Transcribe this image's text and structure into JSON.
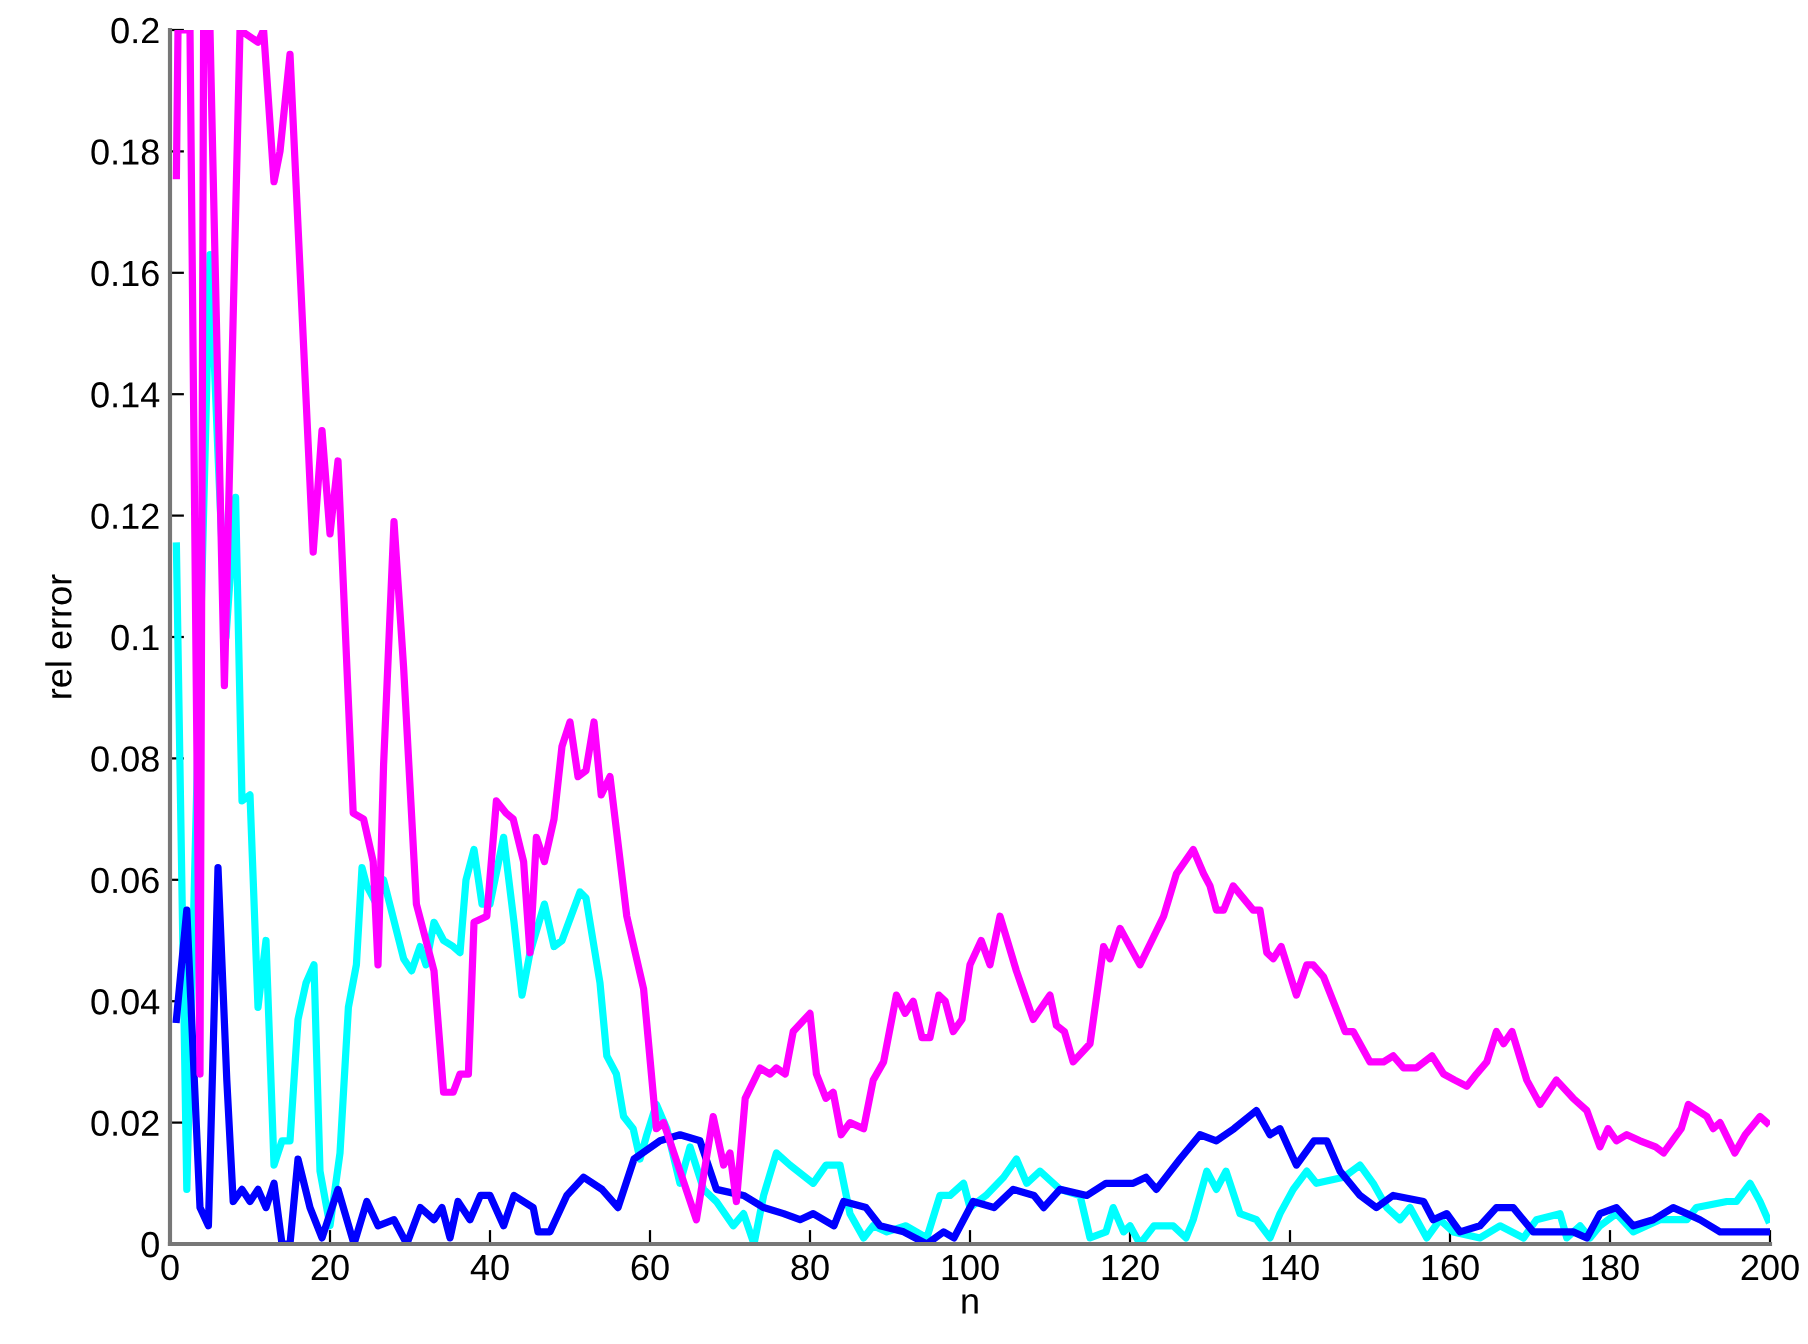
{
  "chart_data": {
    "type": "line",
    "xlabel": "n",
    "ylabel": "rel error",
    "xlim": [
      0,
      200
    ],
    "ylim": [
      0,
      0.2
    ],
    "xticks": [
      0,
      20,
      40,
      60,
      80,
      100,
      120,
      140,
      160,
      180,
      200
    ],
    "yticks": [
      0,
      0.02,
      0.04,
      0.06,
      0.08,
      0.1,
      0.12,
      0.14,
      0.16,
      0.18,
      0.2
    ],
    "grid": false,
    "legend": false,
    "marker": "none",
    "line_style": "solid",
    "series": [
      {
        "color": "#00ffff",
        "x": [
          0.8,
          2.1,
          5,
          6,
          7,
          8.2,
          9,
          10,
          11,
          12,
          13,
          14,
          15,
          16,
          17,
          18,
          18.75,
          20,
          21.25,
          22.3,
          23.3,
          24,
          24.6,
          25.8,
          26.7,
          29.2,
          30.2,
          31.25,
          32,
          33,
          34.2,
          35.4,
          36.25,
          37,
          38,
          39,
          40,
          41.7,
          43,
          44,
          45,
          46.8,
          48,
          49,
          51.25,
          52,
          53.75,
          54.6,
          55.8,
          56.7,
          57.9,
          58.75,
          59.6,
          60.8,
          62.1,
          63.75,
          65,
          66.7,
          68.3,
          70.4,
          71.7,
          73,
          74.2,
          75.8,
          77.5,
          80.4,
          82,
          83.75,
          85,
          86.7,
          87.9,
          89.6,
          92,
          94.6,
          96.25,
          97.5,
          99.2,
          100,
          102,
          104.2,
          105.8,
          107.1,
          108.75,
          111.25,
          113.75,
          115,
          117,
          117.9,
          119.2,
          120,
          121.25,
          123,
          125.4,
          127,
          127.9,
          129.6,
          130.8,
          132,
          133.75,
          135.8,
          137.5,
          138.75,
          140.4,
          142.1,
          143.3,
          146.7,
          148.75,
          150.4,
          152.1,
          153.75,
          155,
          157.1,
          158.75,
          160.4,
          163.75,
          166.25,
          169.2,
          170.8,
          173.75,
          174.6,
          176.25,
          177.5,
          178.75,
          180.8,
          182.9,
          184.6,
          186.25,
          189.6,
          190.8,
          194.6,
          195.8,
          197.5,
          198.75,
          199.75
        ],
        "values": [
          0.115,
          0.009,
          0.163,
          0.13,
          0.1,
          0.123,
          0.073,
          0.074,
          0.039,
          0.05,
          0.013,
          0.017,
          0.017,
          0.037,
          0.043,
          0.046,
          0.012,
          0.003,
          0.015,
          0.039,
          0.046,
          0.062,
          0.059,
          0.056,
          0.06,
          0.047,
          0.045,
          0.049,
          0.046,
          0.053,
          0.05,
          0.049,
          0.048,
          0.06,
          0.065,
          0.056,
          0.056,
          0.067,
          0.053,
          0.041,
          0.048,
          0.056,
          0.049,
          0.05,
          0.058,
          0.057,
          0.043,
          0.031,
          0.028,
          0.021,
          0.019,
          0.014,
          0.018,
          0.023,
          0.019,
          0.01,
          0.016,
          0.009,
          0.007,
          0.003,
          0.005,
          0,
          0.008,
          0.015,
          0.013,
          0.01,
          0.013,
          0.013,
          0.005,
          0.001,
          0.003,
          0.002,
          0.003,
          0.001,
          0.008,
          0.008,
          0.01,
          0.006,
          0.008,
          0.011,
          0.014,
          0.01,
          0.012,
          0.009,
          0.008,
          0.001,
          0.002,
          0.006,
          0.002,
          0.003,
          0,
          0.003,
          0.003,
          0.001,
          0.004,
          0.012,
          0.009,
          0.012,
          0.005,
          0.004,
          0.001,
          0.005,
          0.009,
          0.012,
          0.01,
          0.011,
          0.013,
          0.01,
          0.006,
          0.004,
          0.006,
          0.001,
          0.004,
          0.002,
          0.001,
          0.003,
          0.001,
          0.004,
          0.005,
          0.001,
          0.003,
          0.001,
          0.003,
          0.005,
          0.002,
          0.003,
          0.004,
          0.004,
          0.006,
          0.007,
          0.007,
          0.01,
          0.007,
          0.004
        ]
      },
      {
        "color": "#0000ff",
        "x": [
          0.8,
          2.1,
          3.75,
          4.8,
          6,
          7.1,
          7.9,
          9,
          10,
          11,
          12,
          13,
          14,
          15,
          16,
          17.5,
          19,
          21,
          23,
          24.6,
          26,
          28,
          29.6,
          31.3,
          33,
          34,
          35,
          36,
          37.5,
          38.8,
          40,
          41.7,
          43,
          45.4,
          46,
          47.5,
          49.6,
          51.7,
          54,
          56,
          58,
          61.25,
          63.75,
          66.25,
          68.3,
          71.7,
          74.2,
          76.7,
          78.75,
          80.4,
          83,
          84.2,
          87,
          88.75,
          91.7,
          94.6,
          96.7,
          98,
          100.4,
          103,
          105.4,
          108,
          109.2,
          111.25,
          114.6,
          117,
          120.4,
          122,
          123.3,
          126.25,
          128.75,
          130.8,
          133,
          135.8,
          137.5,
          138.75,
          140.8,
          143,
          144.6,
          146.25,
          148.75,
          150.8,
          152.9,
          156.7,
          157.9,
          159.6,
          161.25,
          163.75,
          165.8,
          167.9,
          170.4,
          172.9,
          175.4,
          177.1,
          178.75,
          180.8,
          182.9,
          185.4,
          187.9,
          189.6,
          191.25,
          193.75,
          197,
          198.75,
          199.6
        ],
        "values": [
          0.037,
          0.055,
          0.006,
          0.003,
          0.062,
          0.027,
          0.007,
          0.009,
          0.007,
          0.009,
          0.006,
          0.01,
          0,
          0,
          0.014,
          0.006,
          0.001,
          0.009,
          0,
          0.007,
          0.003,
          0.004,
          0,
          0.006,
          0.004,
          0.006,
          0.001,
          0.007,
          0.004,
          0.008,
          0.008,
          0.003,
          0.008,
          0.006,
          0.002,
          0.002,
          0.008,
          0.011,
          0.009,
          0.006,
          0.014,
          0.017,
          0.018,
          0.017,
          0.009,
          0.008,
          0.006,
          0.005,
          0.004,
          0.005,
          0.003,
          0.007,
          0.006,
          0.003,
          0.002,
          0,
          0.002,
          0.001,
          0.007,
          0.006,
          0.009,
          0.008,
          0.006,
          0.009,
          0.008,
          0.01,
          0.01,
          0.011,
          0.009,
          0.014,
          0.018,
          0.017,
          0.019,
          0.022,
          0.018,
          0.019,
          0.013,
          0.017,
          0.017,
          0.012,
          0.008,
          0.006,
          0.008,
          0.007,
          0.004,
          0.005,
          0.002,
          0.003,
          0.006,
          0.006,
          0.002,
          0.002,
          0.002,
          0.001,
          0.005,
          0.006,
          0.003,
          0.004,
          0.006,
          0.005,
          0.004,
          0.002,
          0.002,
          0.002,
          0.002
        ]
      },
      {
        "color": "#ff00ff",
        "x": [
          0.8,
          1,
          2.5,
          3.75,
          4.2,
          5,
          6.8,
          8.75,
          11,
          11.7,
          13,
          13.75,
          15,
          17.9,
          19,
          20,
          21,
          22.9,
          24.2,
          25.4,
          26,
          26.7,
          28,
          29.2,
          30.8,
          33,
          34.2,
          35.4,
          36.25,
          37.3,
          38,
          39.6,
          40.8,
          42,
          42.9,
          44.2,
          45,
          45.8,
          46.8,
          48,
          49,
          50,
          51,
          52,
          53,
          53.9,
          55,
          57.1,
          59.2,
          60.8,
          61.7,
          63.75,
          65.8,
          67.9,
          69.2,
          70,
          70.8,
          71.9,
          73.75,
          75,
          75.8,
          76.9,
          77.9,
          80,
          80.8,
          82,
          82.9,
          83.9,
          85,
          86.7,
          87.9,
          89.2,
          90.8,
          91.9,
          92.9,
          94,
          95,
          96.1,
          96.9,
          97.9,
          99,
          100,
          101.4,
          102.5,
          103.75,
          105.8,
          107.9,
          110,
          110.8,
          111.8,
          112.9,
          115,
          116.7,
          117.5,
          118.75,
          121.25,
          124.2,
          125.8,
          127.9,
          129.2,
          130,
          130.8,
          131.7,
          132.9,
          135.4,
          136.25,
          137.1,
          137.9,
          138.9,
          140.8,
          142.1,
          142.9,
          144.2,
          146.9,
          147.9,
          150,
          151.7,
          152.9,
          154.2,
          155.8,
          157.75,
          159.2,
          160.6,
          162.1,
          163.3,
          164.6,
          165.8,
          166.7,
          167.75,
          169.6,
          171.25,
          173.3,
          175.4,
          177.1,
          178.75,
          179.75,
          180.8,
          182.1,
          183.75,
          185.7,
          186.7,
          188.9,
          189.8,
          192.1,
          192.9,
          193.75,
          195.6,
          196.9,
          198.75,
          199.6
        ],
        "values": [
          0.176,
          0.2,
          0.2,
          0.028,
          0.2,
          0.2,
          0.092,
          0.2,
          0.198,
          0.2,
          0.175,
          0.18,
          0.196,
          0.114,
          0.134,
          0.117,
          0.129,
          0.071,
          0.07,
          0.063,
          0.046,
          0.079,
          0.119,
          0.095,
          0.056,
          0.045,
          0.025,
          0.025,
          0.028,
          0.028,
          0.053,
          0.054,
          0.073,
          0.071,
          0.07,
          0.063,
          0.048,
          0.067,
          0.063,
          0.07,
          0.082,
          0.086,
          0.077,
          0.078,
          0.086,
          0.074,
          0.077,
          0.054,
          0.042,
          0.019,
          0.02,
          0.012,
          0.004,
          0.021,
          0.013,
          0.015,
          0.007,
          0.024,
          0.029,
          0.028,
          0.029,
          0.028,
          0.035,
          0.038,
          0.028,
          0.024,
          0.025,
          0.018,
          0.02,
          0.019,
          0.027,
          0.03,
          0.041,
          0.038,
          0.04,
          0.034,
          0.034,
          0.041,
          0.04,
          0.035,
          0.037,
          0.046,
          0.05,
          0.046,
          0.054,
          0.045,
          0.037,
          0.041,
          0.036,
          0.035,
          0.03,
          0.033,
          0.049,
          0.047,
          0.052,
          0.046,
          0.054,
          0.061,
          0.065,
          0.061,
          0.059,
          0.055,
          0.055,
          0.059,
          0.055,
          0.055,
          0.048,
          0.047,
          0.049,
          0.041,
          0.046,
          0.046,
          0.044,
          0.035,
          0.035,
          0.03,
          0.03,
          0.031,
          0.029,
          0.029,
          0.031,
          0.028,
          0.027,
          0.026,
          0.028,
          0.03,
          0.035,
          0.033,
          0.035,
          0.027,
          0.023,
          0.027,
          0.024,
          0.022,
          0.016,
          0.019,
          0.017,
          0.018,
          0.017,
          0.016,
          0.015,
          0.019,
          0.023,
          0.021,
          0.019,
          0.02,
          0.015,
          0.018,
          0.021,
          0.02
        ]
      }
    ]
  }
}
